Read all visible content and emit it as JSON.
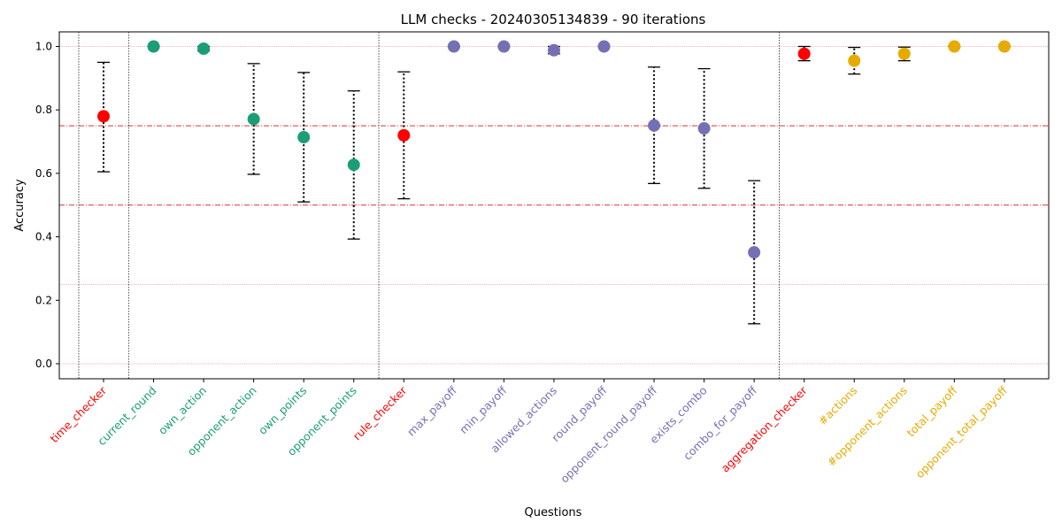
{
  "chart_data": {
    "type": "scatter",
    "title": "LLM checks - 20240305134839 - 90 iterations",
    "xlabel": "Questions",
    "ylabel": "Accuracy",
    "ylim": [
      -0.05,
      1.05
    ],
    "yticks": [
      "0.0",
      "0.2",
      "0.4",
      "0.6",
      "0.8",
      "1.0"
    ],
    "reference_lines": [
      0.25,
      0.5,
      0.75,
      1.0
    ],
    "reference_line_color": "#d62728",
    "group_separators_after": [
      "time_checker",
      "opponent_points",
      "combo_for_payoff"
    ],
    "error_bars": "dotted",
    "colors": {
      "checker": "#ff0000",
      "state": "#1b9e77",
      "rules": "#7570b3",
      "aggregation": "#e6ab02"
    },
    "points": [
      {
        "label": "time_checker",
        "group": "checker",
        "value": 0.78,
        "low": 0.605,
        "high": 0.95
      },
      {
        "label": "current_round",
        "group": "state",
        "value": 1.0,
        "low": 1.0,
        "high": 1.0
      },
      {
        "label": "own_action",
        "group": "state",
        "value": 0.993,
        "low": 0.986,
        "high": 1.0
      },
      {
        "label": "opponent_action",
        "group": "state",
        "value": 0.771,
        "low": 0.597,
        "high": 0.946
      },
      {
        "label": "own_points",
        "group": "state",
        "value": 0.714,
        "low": 0.51,
        "high": 0.918
      },
      {
        "label": "opponent_points",
        "group": "state",
        "value": 0.627,
        "low": 0.393,
        "high": 0.86
      },
      {
        "label": "rule_checker",
        "group": "checker",
        "value": 0.72,
        "low": 0.52,
        "high": 0.92
      },
      {
        "label": "max_payoff",
        "group": "rules",
        "value": 1.0,
        "low": 1.0,
        "high": 1.0
      },
      {
        "label": "min_payoff",
        "group": "rules",
        "value": 1.0,
        "low": 1.0,
        "high": 1.0
      },
      {
        "label": "allowed_actions",
        "group": "rules",
        "value": 0.988,
        "low": 0.977,
        "high": 1.0
      },
      {
        "label": "round_payoff",
        "group": "rules",
        "value": 1.0,
        "low": 1.0,
        "high": 1.0
      },
      {
        "label": "opponent_round_payoff",
        "group": "rules",
        "value": 0.751,
        "low": 0.568,
        "high": 0.935
      },
      {
        "label": "exists_combo",
        "group": "rules",
        "value": 0.742,
        "low": 0.553,
        "high": 0.93
      },
      {
        "label": "combo_for_payoff",
        "group": "rules",
        "value": 0.351,
        "low": 0.126,
        "high": 0.577
      },
      {
        "label": "aggregation_checker",
        "group": "checker",
        "value": 0.977,
        "low": 0.955,
        "high": 1.0
      },
      {
        "label": "#actions",
        "group": "aggregation",
        "value": 0.955,
        "low": 0.913,
        "high": 0.997
      },
      {
        "label": "#opponent_actions",
        "group": "aggregation",
        "value": 0.977,
        "low": 0.955,
        "high": 0.998
      },
      {
        "label": "total_payoff",
        "group": "aggregation",
        "value": 1.0,
        "low": 1.0,
        "high": 1.0
      },
      {
        "label": "opponent_total_payoff",
        "group": "aggregation",
        "value": 1.0,
        "low": 1.0,
        "high": 1.0
      }
    ]
  }
}
